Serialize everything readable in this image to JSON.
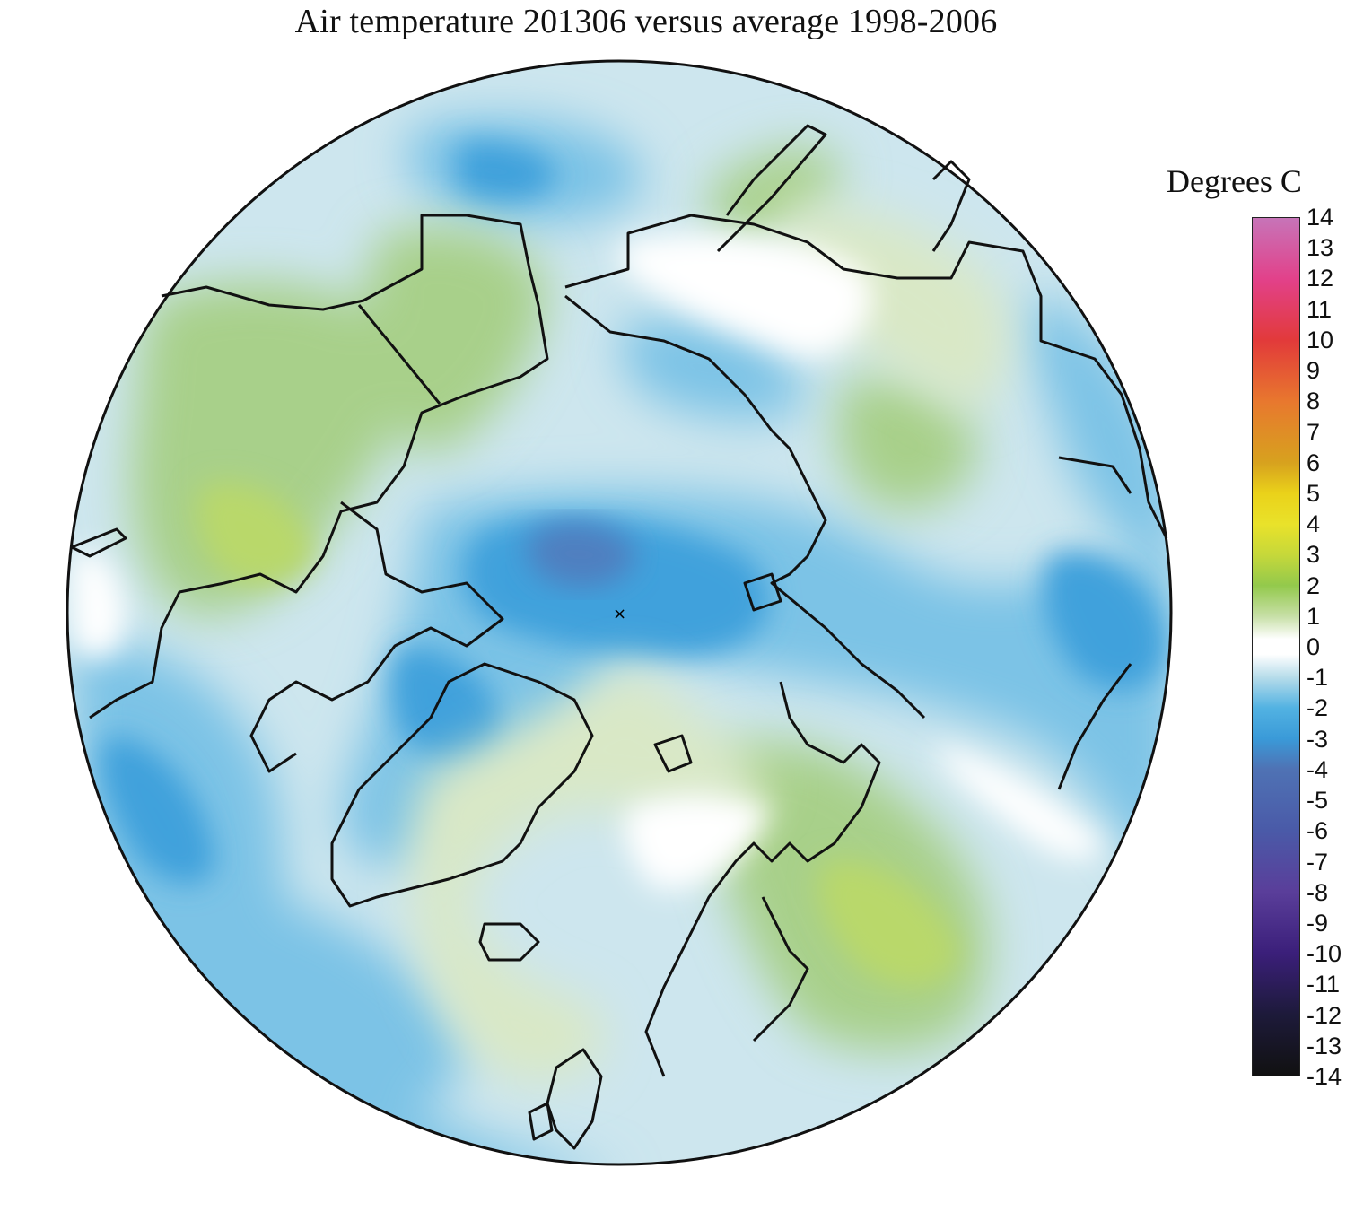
{
  "title": "Air temperature 201306 versus average 1998-2006",
  "legend": {
    "unit_label": "Degrees C",
    "ticks": [
      "14",
      "13",
      "12",
      "11",
      "10",
      "9",
      "8",
      "7",
      "6",
      "5",
      "4",
      "3",
      "2",
      "1",
      "0",
      "-1",
      "-2",
      "-3",
      "-4",
      "-5",
      "-6",
      "-7",
      "-8",
      "-9",
      "-10",
      "-11",
      "-12",
      "-13",
      "-14"
    ],
    "range": [
      -14,
      14
    ],
    "color_stops": [
      {
        "v": 14,
        "c": "#c774b8"
      },
      {
        "v": 12,
        "c": "#e2418a"
      },
      {
        "v": 10,
        "c": "#e23a3a"
      },
      {
        "v": 8,
        "c": "#e8782e"
      },
      {
        "v": 6,
        "c": "#d7a21e"
      },
      {
        "v": 5,
        "c": "#ead21a"
      },
      {
        "v": 4,
        "c": "#e9e22a"
      },
      {
        "v": 3,
        "c": "#c6d83a"
      },
      {
        "v": 2,
        "c": "#93c94c"
      },
      {
        "v": 1,
        "c": "#c7dfa6"
      },
      {
        "v": 0.25,
        "c": "#ffffff"
      },
      {
        "v": -0.25,
        "c": "#ffffff"
      },
      {
        "v": -1,
        "c": "#b6dcea"
      },
      {
        "v": -2,
        "c": "#52b2e2"
      },
      {
        "v": -3,
        "c": "#3a9ad8"
      },
      {
        "v": -4,
        "c": "#4f72b4"
      },
      {
        "v": -6,
        "c": "#4a5aa8"
      },
      {
        "v": -8,
        "c": "#5a3e9a"
      },
      {
        "v": -10,
        "c": "#3b1f7a"
      },
      {
        "v": -12,
        "c": "#1d1a3a"
      },
      {
        "v": -14,
        "c": "#111111"
      }
    ]
  },
  "map": {
    "projection": "north polar stereographic",
    "center_marker": "×",
    "colors": {
      "ocean_boundary": "#1a1a1a",
      "coast": "#111111",
      "anomaly_positive_strong": "#b9d86a",
      "anomaly_positive": "#a8d08a",
      "anomaly_positive_weak": "#d9e8c6",
      "anomaly_zero": "#ffffff",
      "anomaly_negative_weak": "#cde6ee",
      "anomaly_negative": "#7cc3e6",
      "anomaly_negative_strong": "#3fa1dc",
      "anomaly_minimum": "#4f7fc0"
    }
  }
}
